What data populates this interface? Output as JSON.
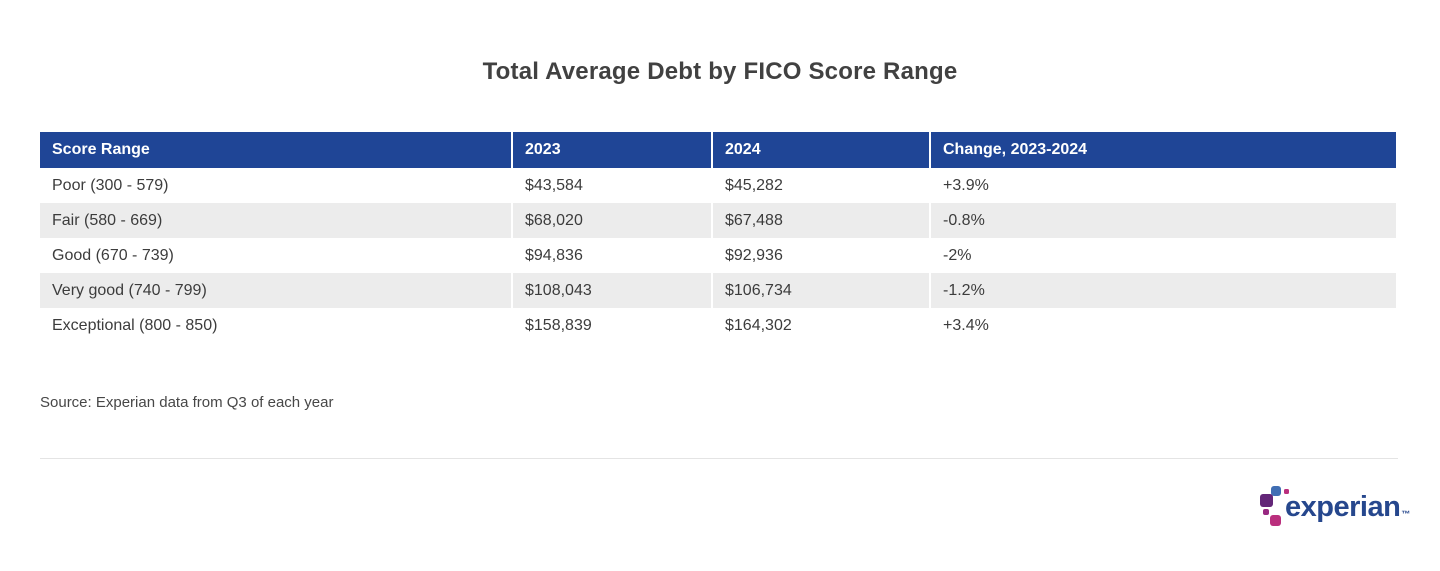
{
  "page": {
    "title": "Total Average Debt by FICO Score Range",
    "source_note": "Source: Experian data from Q3 of each year"
  },
  "table": {
    "columns": [
      "Score Range",
      "2023",
      "2024",
      "Change, 2023-2024"
    ],
    "rows": [
      [
        "Poor (300 - 579)",
        "$43,584",
        "$45,282",
        "+3.9%"
      ],
      [
        "Fair (580 - 669)",
        "$68,020",
        "$67,488",
        "-0.8%"
      ],
      [
        "Good (670 - 739)",
        "$94,836",
        "$92,936",
        "-2%"
      ],
      [
        "Very good (740 - 799)",
        "$108,043",
        "$106,734",
        "-1.2%"
      ],
      [
        "Exceptional (800 - 850)",
        "$158,839",
        "$164,302",
        "+3.4%"
      ]
    ]
  },
  "logo": {
    "wordmark": "experian",
    "trademark": "™"
  },
  "colors": {
    "header_bg": "#1f4596",
    "header_text": "#ffffff",
    "row_alt_bg": "#ececec",
    "body_text": "#3c3c3c",
    "logo_text_blue": "#26478d",
    "logo_blue": "#406eb3",
    "logo_purple": "#632678",
    "logo_magenta": "#ba2f7d",
    "logo_plum": "#982881"
  },
  "chart_data": {
    "type": "table",
    "title": "Total Average Debt by FICO Score Range",
    "categories": [
      "Poor (300 - 579)",
      "Fair (580 - 669)",
      "Good (670 - 739)",
      "Very good (740 - 799)",
      "Exceptional (800 - 850)"
    ],
    "series": [
      {
        "name": "2023",
        "values": [
          43584,
          68020,
          94836,
          108043,
          158839
        ]
      },
      {
        "name": "2024",
        "values": [
          45282,
          67488,
          92936,
          106734,
          164302
        ]
      },
      {
        "name": "Change, 2023-2024",
        "values": [
          "+3.9%",
          "-0.8%",
          "-2%",
          "-1.2%",
          "+3.4%"
        ]
      }
    ],
    "source": "Source: Experian data from Q3 of each year",
    "legend_position": "none",
    "grid": false
  }
}
